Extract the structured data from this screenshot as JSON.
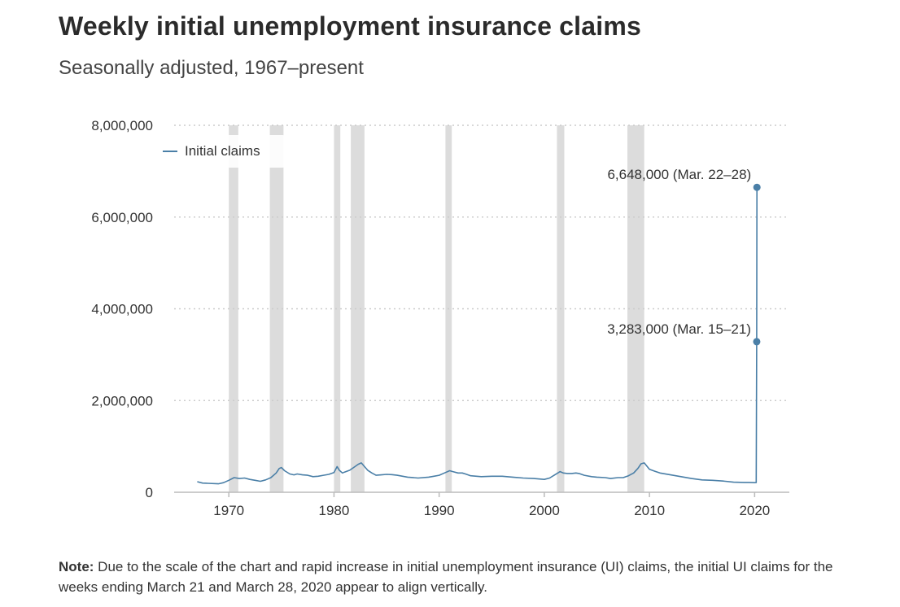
{
  "title": "Weekly initial unemployment insurance claims",
  "subtitle": "Seasonally adjusted, 1967–present",
  "note": {
    "label": "Note:",
    "text": " Due to the scale of the chart and rapid increase in initial unemployment insurance (UI) claims, the initial UI claims for the weeks ending March 21 and March 28, 2020 appear to align vertically."
  },
  "colors": {
    "line": "#4a7fa7",
    "recession": "#dcdcdc",
    "grid": "#cccccc",
    "axis": "#bbbbbb"
  },
  "chart_data": {
    "type": "line",
    "title": "Weekly initial unemployment insurance claims",
    "subtitle": "Seasonally adjusted, 1967–present",
    "xlabel": "",
    "ylabel": "",
    "xlim": [
      1964.8,
      2023.3
    ],
    "ylim": [
      0,
      8000000
    ],
    "x_ticks": [
      1970,
      1980,
      1990,
      2000,
      2010,
      2020
    ],
    "x_tick_labels": [
      "1970",
      "1980",
      "1990",
      "2000",
      "2010",
      "2020"
    ],
    "y_ticks": [
      0,
      2000000,
      4000000,
      6000000,
      8000000
    ],
    "y_tick_labels": [
      "0",
      "2,000,000",
      "4,000,000",
      "6,000,000",
      "8,000,000"
    ],
    "grid": true,
    "legend": {
      "entries": [
        "Initial claims"
      ],
      "position": "top-left"
    },
    "recessions": [
      [
        1970.0,
        1970.9
      ],
      [
        1973.9,
        1975.2
      ],
      [
        1980.0,
        1980.6
      ],
      [
        1981.6,
        1982.9
      ],
      [
        1990.6,
        1991.2
      ],
      [
        2001.2,
        2001.9
      ],
      [
        2007.9,
        2009.5
      ]
    ],
    "series": [
      {
        "name": "Initial claims",
        "x": [
          1967.0,
          1967.5,
          1968.0,
          1969.0,
          1969.5,
          1970.0,
          1970.5,
          1971.0,
          1971.5,
          1972.0,
          1972.5,
          1973.0,
          1973.5,
          1974.0,
          1974.5,
          1974.8,
          1975.0,
          1975.3,
          1975.8,
          1976.2,
          1976.5,
          1977.0,
          1977.5,
          1978.0,
          1978.5,
          1979.0,
          1979.5,
          1980.0,
          1980.3,
          1980.5,
          1980.8,
          1981.0,
          1981.5,
          1982.0,
          1982.3,
          1982.6,
          1982.9,
          1983.2,
          1983.6,
          1984.0,
          1984.5,
          1985.0,
          1985.5,
          1986.0,
          1987.0,
          1988.0,
          1989.0,
          1989.5,
          1990.0,
          1990.5,
          1991.0,
          1991.3,
          1991.8,
          1992.2,
          1992.5,
          1993.0,
          1994.0,
          1995.0,
          1996.0,
          1997.0,
          1998.0,
          1999.0,
          2000.0,
          2000.5,
          2001.0,
          2001.5,
          2001.8,
          2002.2,
          2002.6,
          2003.0,
          2003.3,
          2003.8,
          2004.5,
          2005.0,
          2005.8,
          2006.3,
          2007.0,
          2007.5,
          2008.0,
          2008.5,
          2008.9,
          2009.2,
          2009.5,
          2010.0,
          2010.5,
          2011.0,
          2012.0,
          2013.0,
          2014.0,
          2015.0,
          2016.0,
          2017.0,
          2018.0,
          2019.0,
          2019.5,
          2020.0,
          2020.15,
          2020.2,
          2020.22
        ],
        "values": [
          230000,
          200000,
          195000,
          185000,
          210000,
          260000,
          320000,
          300000,
          310000,
          280000,
          260000,
          240000,
          270000,
          320000,
          420000,
          520000,
          540000,
          470000,
          400000,
          380000,
          400000,
          380000,
          370000,
          340000,
          350000,
          370000,
          390000,
          430000,
          560000,
          480000,
          420000,
          440000,
          480000,
          560000,
          610000,
          640000,
          560000,
          480000,
          420000,
          370000,
          380000,
          390000,
          385000,
          370000,
          330000,
          310000,
          330000,
          350000,
          370000,
          420000,
          470000,
          450000,
          420000,
          420000,
          400000,
          360000,
          340000,
          350000,
          350000,
          330000,
          310000,
          300000,
          280000,
          310000,
          380000,
          450000,
          420000,
          410000,
          410000,
          420000,
          410000,
          370000,
          340000,
          330000,
          320000,
          300000,
          320000,
          320000,
          360000,
          420000,
          520000,
          620000,
          640000,
          500000,
          460000,
          420000,
          380000,
          340000,
          300000,
          270000,
          260000,
          245000,
          220000,
          215000,
          215000,
          210000,
          211000,
          3283000,
          6648000
        ]
      }
    ],
    "annotations": [
      {
        "text": "6,648,000 (Mar. 22–28)",
        "x": 2020.22,
        "y": 6648000
      },
      {
        "text": "3,283,000 (Mar. 15–21)",
        "x": 2020.2,
        "y": 3283000
      }
    ]
  }
}
